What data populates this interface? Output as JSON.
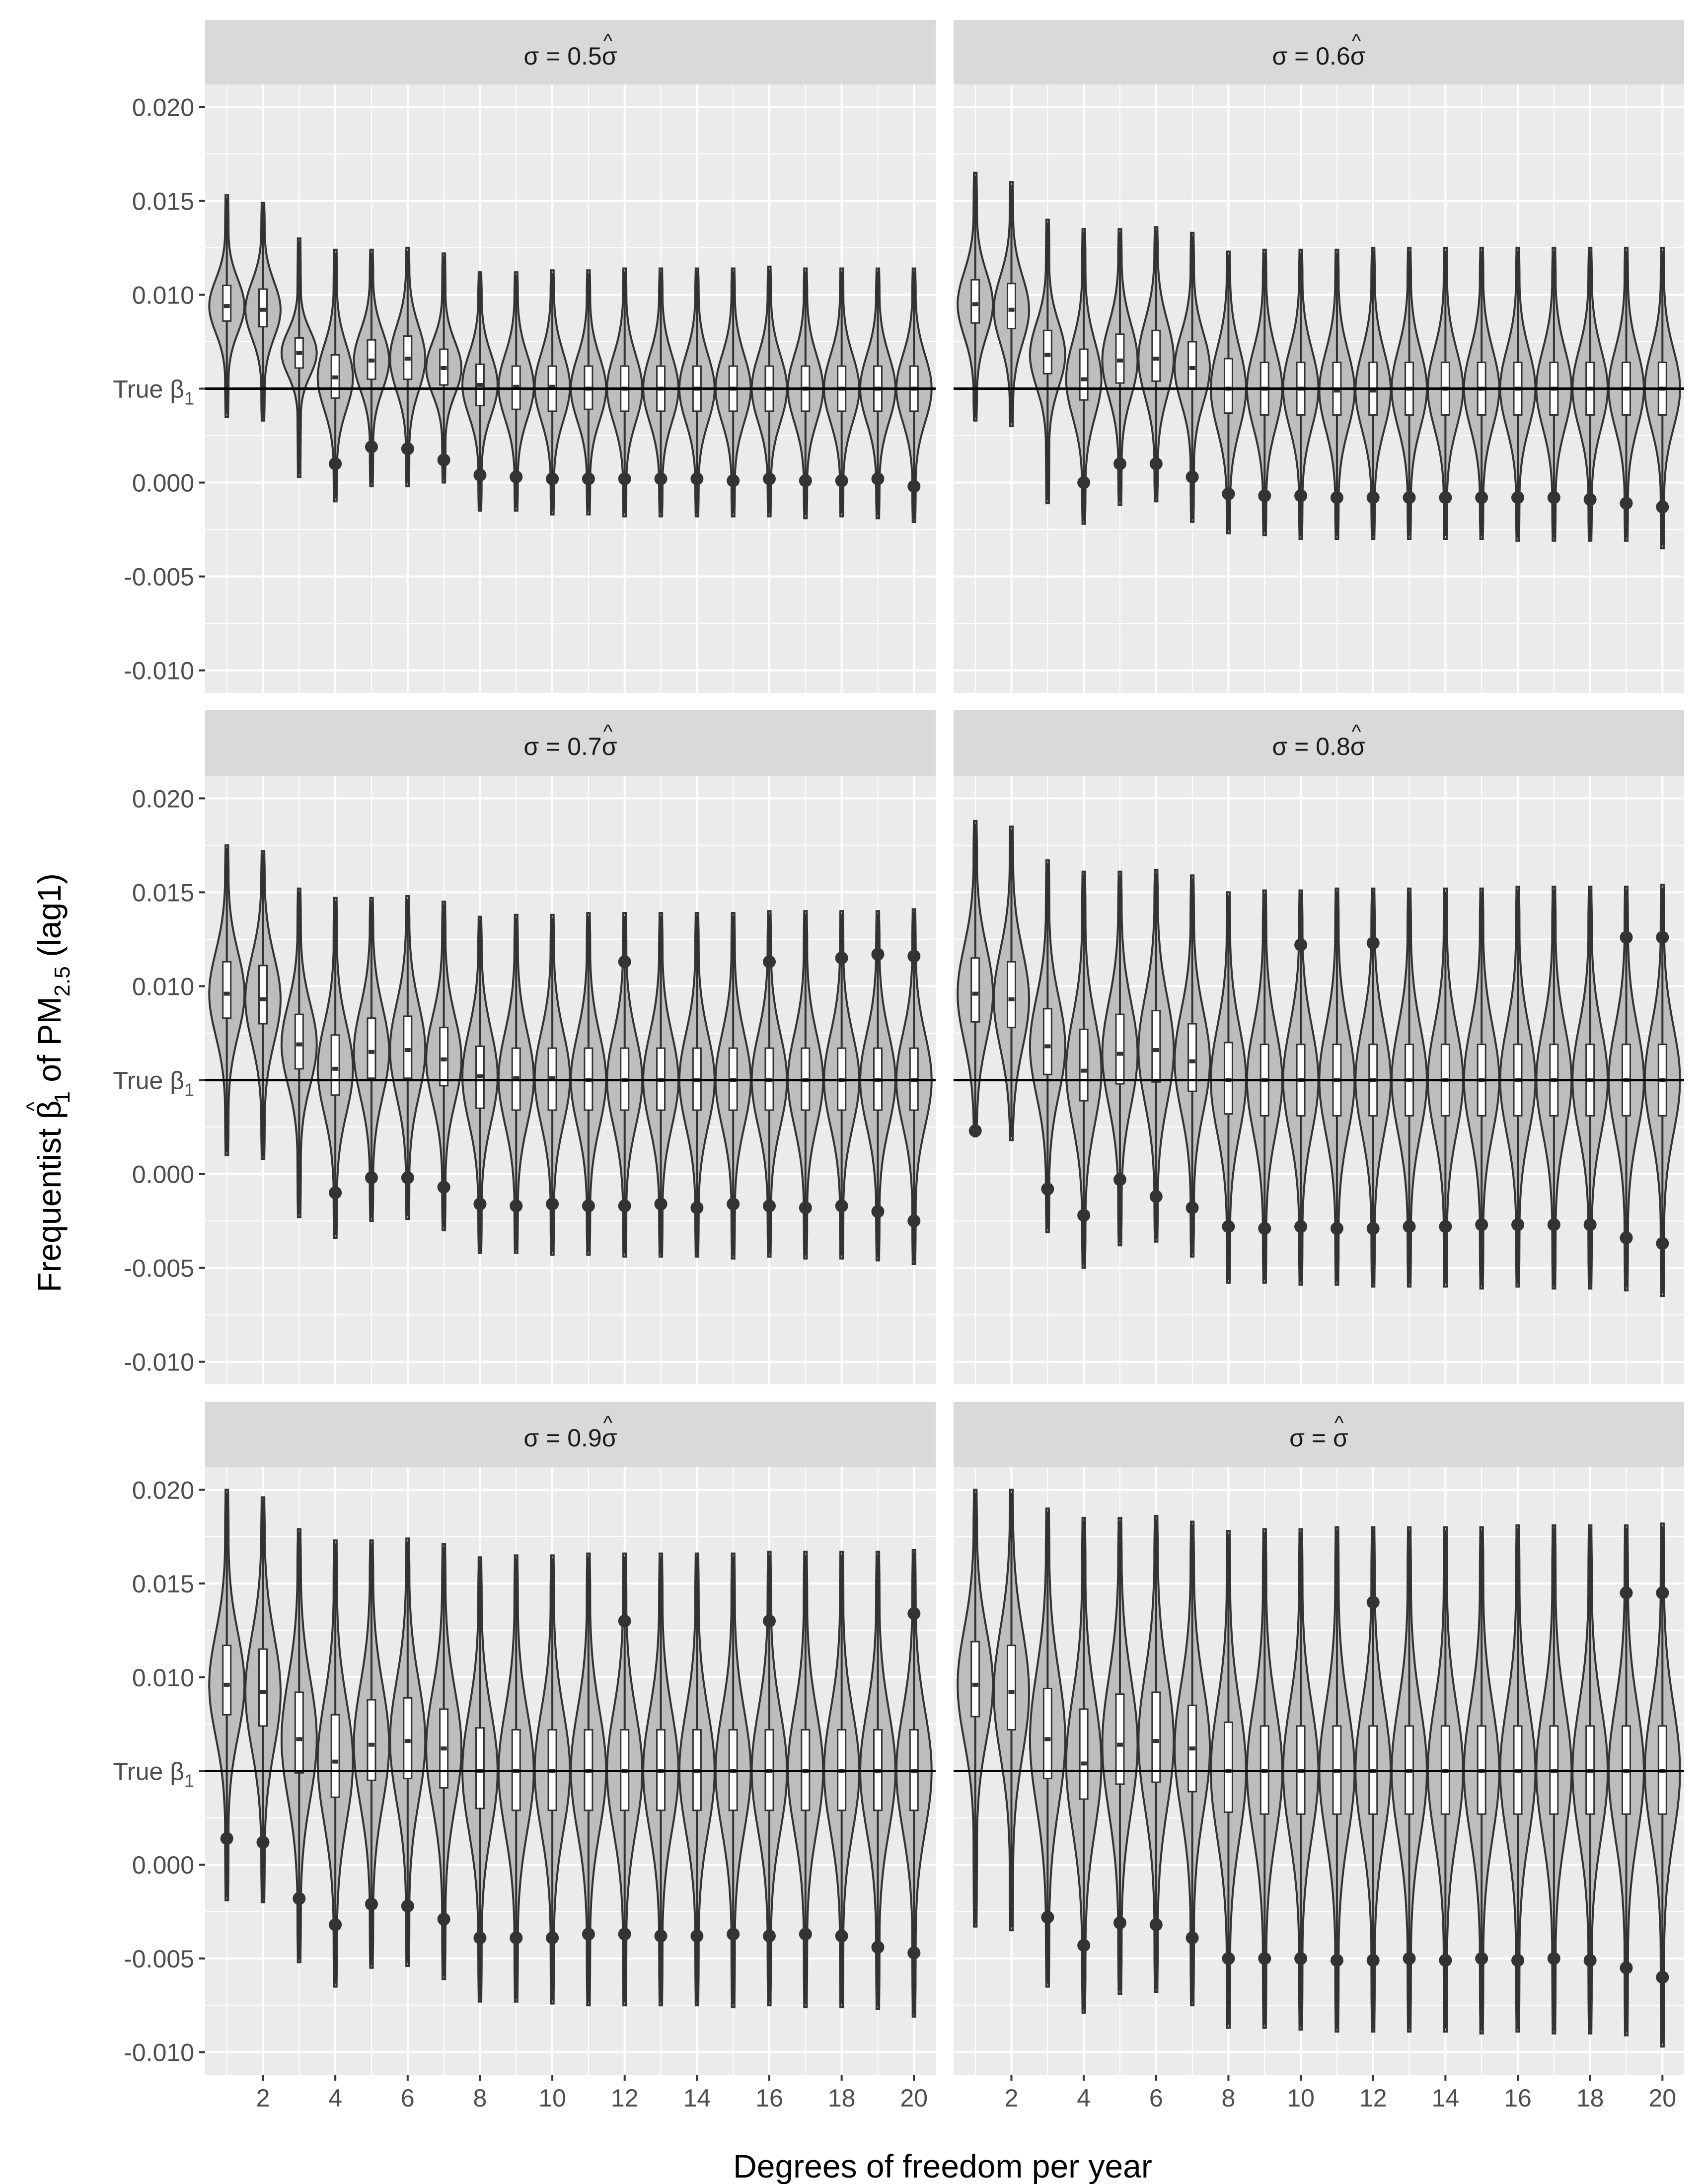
{
  "figure": {
    "xlabel": "Degrees of freedom per year",
    "ylabel": {
      "prefix": "Frequentist ",
      "beta": "β",
      "hat": "^",
      "beta_sub": "1",
      "mid": " of PM",
      "pm_sub": "2.5",
      "suffix": " (lag1)"
    },
    "true_line": {
      "label": "True β",
      "label_sub": "1",
      "value": 0.005
    },
    "colors": {
      "panel_bg": "#ebebeb",
      "strip_bg": "#d9d9d9",
      "grid": "#ffffff",
      "violin_fill": "#bdbdbd",
      "violin_stroke": "#333333",
      "box_fill": "#ffffff",
      "reference_line": "#000000",
      "text": "#4d4d4d",
      "strip_text": "#1a1a1a"
    }
  },
  "chart_data": {
    "type": "violin",
    "facet_layout": "3 rows x 2 columns",
    "x": [
      1,
      2,
      3,
      4,
      5,
      6,
      7,
      8,
      9,
      10,
      11,
      12,
      13,
      14,
      15,
      16,
      17,
      18,
      19,
      20
    ],
    "x_ticks": [
      2,
      4,
      6,
      8,
      10,
      12,
      14,
      16,
      18,
      20
    ],
    "xlim": [
      0.4,
      20.6
    ],
    "ylim": [
      -0.0112,
      0.0212
    ],
    "y_ticks": [
      0.02,
      0.015,
      0.01,
      0.005,
      0.0,
      -0.005,
      -0.01
    ],
    "y_tick_labels": [
      "0.020",
      "0.015",
      "0.010",
      "True β",
      "0.000",
      "-0.005",
      "-0.010"
    ],
    "panels": [
      {
        "title": "σ = 0.5σ̂",
        "medians": [
          0.0094,
          0.0092,
          0.0069,
          0.0056,
          0.0065,
          0.0066,
          0.0061,
          0.0052,
          0.0051,
          0.0051,
          0.005,
          0.005,
          0.005,
          0.005,
          0.005,
          0.005,
          0.005,
          0.005,
          0.005,
          0.005
        ],
        "q1": [
          0.0086,
          0.0083,
          0.0061,
          0.0045,
          0.0055,
          0.0055,
          0.0052,
          0.0041,
          0.0039,
          0.0038,
          0.0039,
          0.0038,
          0.0038,
          0.0038,
          0.0038,
          0.0038,
          0.0038,
          0.0038,
          0.0038,
          0.0038
        ],
        "q3": [
          0.0105,
          0.0103,
          0.0077,
          0.0068,
          0.0076,
          0.0078,
          0.0071,
          0.0063,
          0.0062,
          0.0062,
          0.0062,
          0.0062,
          0.0062,
          0.0062,
          0.0062,
          0.0062,
          0.0062,
          0.0062,
          0.0062,
          0.0062
        ],
        "mins": [
          0.0035,
          0.0033,
          0.0003,
          -0.001,
          -0.0002,
          -0.0002,
          0.0,
          -0.0015,
          -0.0015,
          -0.0017,
          -0.0017,
          -0.0018,
          -0.0018,
          -0.0018,
          -0.0018,
          -0.0018,
          -0.0019,
          -0.0018,
          -0.0019,
          -0.0021
        ],
        "maxs": [
          0.0153,
          0.0149,
          0.013,
          0.0124,
          0.0124,
          0.0125,
          0.0122,
          0.0112,
          0.0112,
          0.0113,
          0.0113,
          0.0114,
          0.0114,
          0.0114,
          0.0114,
          0.0115,
          0.0114,
          0.0114,
          0.0114,
          0.0114
        ],
        "outliers_low": [
          null,
          null,
          null,
          0.001,
          0.0019,
          0.0018,
          0.0012,
          0.0004,
          0.0003,
          0.0002,
          0.0002,
          0.0002,
          0.0002,
          0.0002,
          0.0001,
          0.0002,
          0.0001,
          0.0001,
          0.0002,
          -0.0002
        ]
      },
      {
        "title": "σ = 0.6σ̂",
        "medians": [
          0.0095,
          0.0092,
          0.0068,
          0.0055,
          0.0065,
          0.0066,
          0.0061,
          0.005,
          0.005,
          0.005,
          0.0049,
          0.0049,
          0.005,
          0.005,
          0.005,
          0.005,
          0.005,
          0.005,
          0.005,
          0.005
        ],
        "q1": [
          0.0085,
          0.0082,
          0.0058,
          0.0044,
          0.0053,
          0.0054,
          0.005,
          0.0037,
          0.0036,
          0.0036,
          0.0036,
          0.0036,
          0.0036,
          0.0036,
          0.0036,
          0.0036,
          0.0036,
          0.0036,
          0.0036,
          0.0036
        ],
        "q3": [
          0.0108,
          0.0106,
          0.0081,
          0.0071,
          0.0079,
          0.0081,
          0.0075,
          0.0066,
          0.0064,
          0.0064,
          0.0064,
          0.0064,
          0.0064,
          0.0064,
          0.0064,
          0.0064,
          0.0064,
          0.0064,
          0.0064,
          0.0064
        ],
        "mins": [
          0.0033,
          0.003,
          -0.0011,
          -0.0022,
          -0.0012,
          -0.001,
          -0.0021,
          -0.0027,
          -0.0028,
          -0.003,
          -0.003,
          -0.003,
          -0.003,
          -0.003,
          -0.003,
          -0.0031,
          -0.0031,
          -0.0031,
          -0.0031,
          -0.0035
        ],
        "maxs": [
          0.0165,
          0.016,
          0.014,
          0.0135,
          0.0135,
          0.0136,
          0.0133,
          0.0123,
          0.0124,
          0.0124,
          0.0124,
          0.0125,
          0.0125,
          0.0125,
          0.0125,
          0.0125,
          0.0125,
          0.0125,
          0.0125,
          0.0125
        ],
        "outliers_low": [
          null,
          null,
          null,
          0.0,
          0.001,
          0.001,
          0.0003,
          -0.0006,
          -0.0007,
          -0.0007,
          -0.0008,
          -0.0008,
          -0.0008,
          -0.0008,
          -0.0008,
          -0.0008,
          -0.0008,
          -0.0009,
          -0.0011,
          -0.0013
        ]
      },
      {
        "title": "σ = 0.7σ̂",
        "medians": [
          0.0096,
          0.0093,
          0.0069,
          0.0056,
          0.0065,
          0.0066,
          0.0061,
          0.0052,
          0.0051,
          0.0051,
          0.005,
          0.005,
          0.005,
          0.005,
          0.005,
          0.005,
          0.005,
          0.005,
          0.005,
          0.005
        ],
        "q1": [
          0.0083,
          0.008,
          0.0056,
          0.0042,
          0.0051,
          0.0051,
          0.0047,
          0.0035,
          0.0034,
          0.0034,
          0.0034,
          0.0034,
          0.0034,
          0.0034,
          0.0034,
          0.0034,
          0.0034,
          0.0034,
          0.0034,
          0.0034
        ],
        "q3": [
          0.0113,
          0.0111,
          0.0085,
          0.0074,
          0.0083,
          0.0084,
          0.0078,
          0.0068,
          0.0067,
          0.0067,
          0.0067,
          0.0067,
          0.0067,
          0.0067,
          0.0067,
          0.0067,
          0.0067,
          0.0067,
          0.0067,
          0.0067
        ],
        "mins": [
          0.001,
          0.0008,
          -0.0023,
          -0.0034,
          -0.0025,
          -0.0024,
          -0.003,
          -0.0042,
          -0.0042,
          -0.0043,
          -0.0043,
          -0.0044,
          -0.0044,
          -0.0044,
          -0.0045,
          -0.0044,
          -0.0045,
          -0.0045,
          -0.0046,
          -0.0048
        ],
        "maxs": [
          0.0175,
          0.0172,
          0.0152,
          0.0147,
          0.0147,
          0.0148,
          0.0145,
          0.0137,
          0.0138,
          0.0138,
          0.0139,
          0.0139,
          0.0139,
          0.0139,
          0.0139,
          0.014,
          0.014,
          0.014,
          0.014,
          0.0141
        ],
        "outliers_low": [
          null,
          null,
          null,
          -0.001,
          -0.0002,
          -0.0002,
          -0.0007,
          -0.0016,
          -0.0017,
          -0.0016,
          -0.0017,
          -0.0017,
          -0.0016,
          -0.0018,
          -0.0016,
          -0.0017,
          -0.0018,
          -0.0017,
          -0.002,
          -0.0025
        ],
        "outliers_high": [
          null,
          null,
          null,
          null,
          null,
          null,
          null,
          null,
          null,
          null,
          null,
          0.0113,
          null,
          null,
          null,
          0.0113,
          null,
          0.0115,
          0.0117,
          0.0116
        ]
      },
      {
        "title": "σ = 0.8σ̂",
        "medians": [
          0.0096,
          0.0093,
          0.0068,
          0.0055,
          0.0064,
          0.0066,
          0.006,
          0.005,
          0.005,
          0.005,
          0.005,
          0.005,
          0.005,
          0.005,
          0.005,
          0.005,
          0.005,
          0.005,
          0.005,
          0.005
        ],
        "q1": [
          0.0081,
          0.0078,
          0.0053,
          0.0039,
          0.0048,
          0.0049,
          0.0044,
          0.0032,
          0.0031,
          0.0031,
          0.0031,
          0.0031,
          0.0031,
          0.0031,
          0.0031,
          0.0031,
          0.0031,
          0.0031,
          0.0031,
          0.0031
        ],
        "q3": [
          0.0115,
          0.0113,
          0.0088,
          0.0077,
          0.0085,
          0.0087,
          0.008,
          0.007,
          0.0069,
          0.0069,
          0.0069,
          0.0069,
          0.0069,
          0.0069,
          0.0069,
          0.0069,
          0.0069,
          0.0069,
          0.0069,
          0.0069
        ],
        "mins": [
          0.002,
          0.0018,
          -0.0031,
          -0.005,
          -0.0038,
          -0.0036,
          -0.0044,
          -0.0058,
          -0.0058,
          -0.0059,
          -0.0059,
          -0.006,
          -0.006,
          -0.006,
          -0.0061,
          -0.006,
          -0.0061,
          -0.0061,
          -0.0062,
          -0.0065
        ],
        "maxs": [
          0.0188,
          0.0185,
          0.0167,
          0.0161,
          0.0161,
          0.0162,
          0.0159,
          0.015,
          0.0151,
          0.0151,
          0.0152,
          0.0152,
          0.0152,
          0.0152,
          0.0152,
          0.0153,
          0.0153,
          0.0153,
          0.0153,
          0.0154
        ],
        "outliers_low": [
          0.0023,
          null,
          -0.0008,
          -0.0022,
          -0.0003,
          -0.0012,
          -0.0018,
          -0.0028,
          -0.0029,
          -0.0028,
          -0.0029,
          -0.0029,
          -0.0028,
          -0.0028,
          -0.0027,
          -0.0027,
          -0.0027,
          -0.0027,
          -0.0034,
          -0.0037
        ],
        "outliers_high": [
          null,
          null,
          null,
          null,
          null,
          null,
          null,
          null,
          null,
          0.0122,
          null,
          0.0123,
          null,
          null,
          null,
          null,
          null,
          null,
          0.0126,
          0.0126
        ]
      },
      {
        "title": "σ = 0.9σ̂",
        "medians": [
          0.0096,
          0.0092,
          0.0067,
          0.0055,
          0.0064,
          0.0066,
          0.0062,
          0.005,
          0.005,
          0.005,
          0.005,
          0.005,
          0.005,
          0.005,
          0.005,
          0.005,
          0.005,
          0.005,
          0.005,
          0.005
        ],
        "q1": [
          0.008,
          0.0074,
          0.0049,
          0.0036,
          0.0045,
          0.0046,
          0.0041,
          0.003,
          0.0029,
          0.0029,
          0.0029,
          0.0029,
          0.0029,
          0.0029,
          0.0029,
          0.0029,
          0.0029,
          0.0029,
          0.0029,
          0.0029
        ],
        "q3": [
          0.0117,
          0.0115,
          0.0092,
          0.008,
          0.0088,
          0.0089,
          0.0083,
          0.0073,
          0.0072,
          0.0072,
          0.0072,
          0.0072,
          0.0072,
          0.0072,
          0.0072,
          0.0072,
          0.0072,
          0.0072,
          0.0072,
          0.0072
        ],
        "mins": [
          -0.0019,
          -0.002,
          -0.0052,
          -0.0065,
          -0.0055,
          -0.0054,
          -0.0061,
          -0.0073,
          -0.0073,
          -0.0074,
          -0.0075,
          -0.0075,
          -0.0075,
          -0.0075,
          -0.0076,
          -0.0075,
          -0.0076,
          -0.0076,
          -0.0077,
          -0.0081
        ],
        "maxs": [
          0.02,
          0.0196,
          0.0179,
          0.0173,
          0.0173,
          0.0174,
          0.0171,
          0.0164,
          0.0165,
          0.0165,
          0.0166,
          0.0166,
          0.0166,
          0.0166,
          0.0166,
          0.0167,
          0.0167,
          0.0167,
          0.0167,
          0.0168
        ],
        "outliers_low": [
          0.0014,
          0.0012,
          -0.0018,
          -0.0032,
          -0.0021,
          -0.0022,
          -0.0029,
          -0.0039,
          -0.0039,
          -0.0039,
          -0.0037,
          -0.0037,
          -0.0038,
          -0.0038,
          -0.0037,
          -0.0038,
          -0.0037,
          -0.0038,
          -0.0044,
          -0.0047
        ],
        "outliers_high": [
          null,
          null,
          null,
          null,
          null,
          null,
          null,
          null,
          null,
          null,
          null,
          0.013,
          null,
          null,
          null,
          0.013,
          null,
          null,
          null,
          0.0134
        ]
      },
      {
        "title": "σ = σ̂",
        "medians": [
          0.0096,
          0.0092,
          0.0067,
          0.0054,
          0.0064,
          0.0066,
          0.0062,
          0.005,
          0.005,
          0.005,
          0.005,
          0.005,
          0.005,
          0.005,
          0.005,
          0.005,
          0.005,
          0.005,
          0.005,
          0.005
        ],
        "q1": [
          0.0079,
          0.0072,
          0.0046,
          0.0035,
          0.0043,
          0.0044,
          0.0039,
          0.0028,
          0.0027,
          0.0027,
          0.0027,
          0.0027,
          0.0027,
          0.0027,
          0.0027,
          0.0027,
          0.0027,
          0.0027,
          0.0027,
          0.0027
        ],
        "q3": [
          0.0119,
          0.0117,
          0.0094,
          0.0083,
          0.0091,
          0.0092,
          0.0085,
          0.0076,
          0.0074,
          0.0074,
          0.0074,
          0.0074,
          0.0074,
          0.0074,
          0.0074,
          0.0074,
          0.0074,
          0.0074,
          0.0074,
          0.0074
        ],
        "mins": [
          -0.0033,
          -0.0035,
          -0.0065,
          -0.0079,
          -0.0069,
          -0.0068,
          -0.0075,
          -0.0087,
          -0.0087,
          -0.0088,
          -0.0089,
          -0.0089,
          -0.0089,
          -0.0089,
          -0.009,
          -0.0089,
          -0.009,
          -0.009,
          -0.0091,
          -0.0097
        ],
        "maxs": [
          0.02,
          0.02,
          0.019,
          0.0185,
          0.0185,
          0.0186,
          0.0183,
          0.0178,
          0.0179,
          0.0179,
          0.018,
          0.018,
          0.018,
          0.018,
          0.018,
          0.0181,
          0.0181,
          0.0181,
          0.0181,
          0.0182
        ],
        "outliers_low": [
          null,
          null,
          -0.0028,
          -0.0043,
          -0.0031,
          -0.0032,
          -0.0039,
          -0.005,
          -0.005,
          -0.005,
          -0.0051,
          -0.0051,
          -0.005,
          -0.0051,
          -0.005,
          -0.0051,
          -0.005,
          -0.0051,
          -0.0055,
          -0.006
        ],
        "outliers_high": [
          null,
          null,
          null,
          null,
          null,
          null,
          null,
          null,
          null,
          null,
          null,
          0.014,
          null,
          null,
          null,
          null,
          null,
          null,
          0.0145,
          0.0145
        ]
      }
    ]
  }
}
